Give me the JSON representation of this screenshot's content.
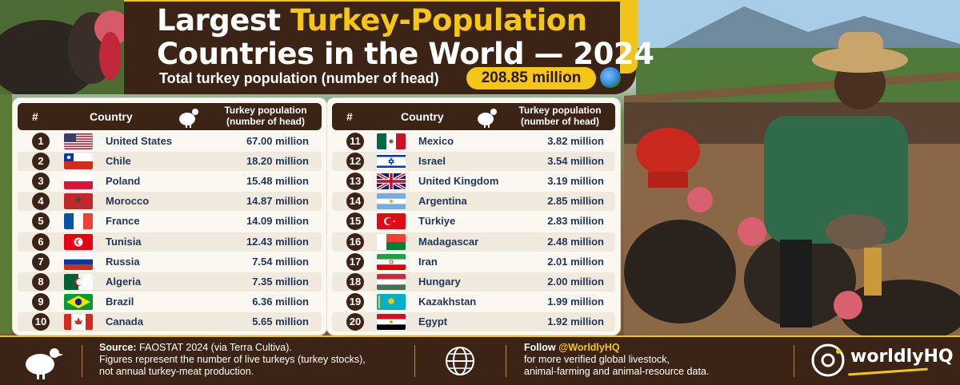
{
  "header": {
    "title_line1_a": "Largest ",
    "title_line1_b": "Turkey-Population",
    "title_line2": "Countries in the World — 2024",
    "subtitle": "Total turkey population (number of head)",
    "total": "208.85 million"
  },
  "table_headers": {
    "num": "#",
    "country": "Country",
    "pop_line1": "Turkey population",
    "pop_line2": "(number of head)"
  },
  "left_rows": [
    {
      "rank": "1",
      "country": "United States",
      "value": "67.00 million",
      "flag": "us"
    },
    {
      "rank": "2",
      "country": "Chile",
      "value": "18.20 million",
      "flag": "cl"
    },
    {
      "rank": "3",
      "country": "Poland",
      "value": "15.48 million",
      "flag": "pl"
    },
    {
      "rank": "4",
      "country": "Morocco",
      "value": "14.87 million",
      "flag": "ma"
    },
    {
      "rank": "5",
      "country": "France",
      "value": "14.09 million",
      "flag": "fr"
    },
    {
      "rank": "6",
      "country": "Tunisia",
      "value": "12.43 million",
      "flag": "tn"
    },
    {
      "rank": "7",
      "country": "Russia",
      "value": "7.54 million",
      "flag": "ru"
    },
    {
      "rank": "8",
      "country": "Algeria",
      "value": "7.35 million",
      "flag": "dz"
    },
    {
      "rank": "9",
      "country": "Brazil",
      "value": "6.36 million",
      "flag": "br"
    },
    {
      "rank": "10",
      "country": "Canada",
      "value": "5.65 million",
      "flag": "ca"
    }
  ],
  "right_rows": [
    {
      "rank": "11",
      "country": "Mexico",
      "value": "3.82 million",
      "flag": "mx"
    },
    {
      "rank": "12",
      "country": "Israel",
      "value": "3.54 million",
      "flag": "il"
    },
    {
      "rank": "13",
      "country": "United Kingdom",
      "value": "3.19 million",
      "flag": "gb"
    },
    {
      "rank": "14",
      "country": "Argentina",
      "value": "2.85 million",
      "flag": "ar"
    },
    {
      "rank": "15",
      "country": "Türkiye",
      "value": "2.83 million",
      "flag": "tr"
    },
    {
      "rank": "16",
      "country": "Madagascar",
      "value": "2.48 million",
      "flag": "mg"
    },
    {
      "rank": "17",
      "country": "Iran",
      "value": "2.01 million",
      "flag": "ir"
    },
    {
      "rank": "18",
      "country": "Hungary",
      "value": "2.00 million",
      "flag": "hu"
    },
    {
      "rank": "19",
      "country": "Kazakhstan",
      "value": "1.99 million",
      "flag": "kz"
    },
    {
      "rank": "20",
      "country": "Egypt",
      "value": "1.92 million",
      "flag": "eg"
    }
  ],
  "footer": {
    "source_label": "Source:",
    "source_text": "FAOSTAT 2024 (via Terra Cultiva).",
    "note_line1": "Figures represent the number of live turkeys (turkey stocks),",
    "note_line2": "not annual turkey-meat production.",
    "follow_label": "Follow ",
    "follow_handle": "@WorldlyHQ",
    "follow_line2": "for more verified global livestock,",
    "follow_line3": "animal-farming and animal-resource data.",
    "brand": "worldlyHQ"
  },
  "colors": {
    "accent": "#f5c518",
    "dark": "#3b2416",
    "text": "#1f3559"
  }
}
